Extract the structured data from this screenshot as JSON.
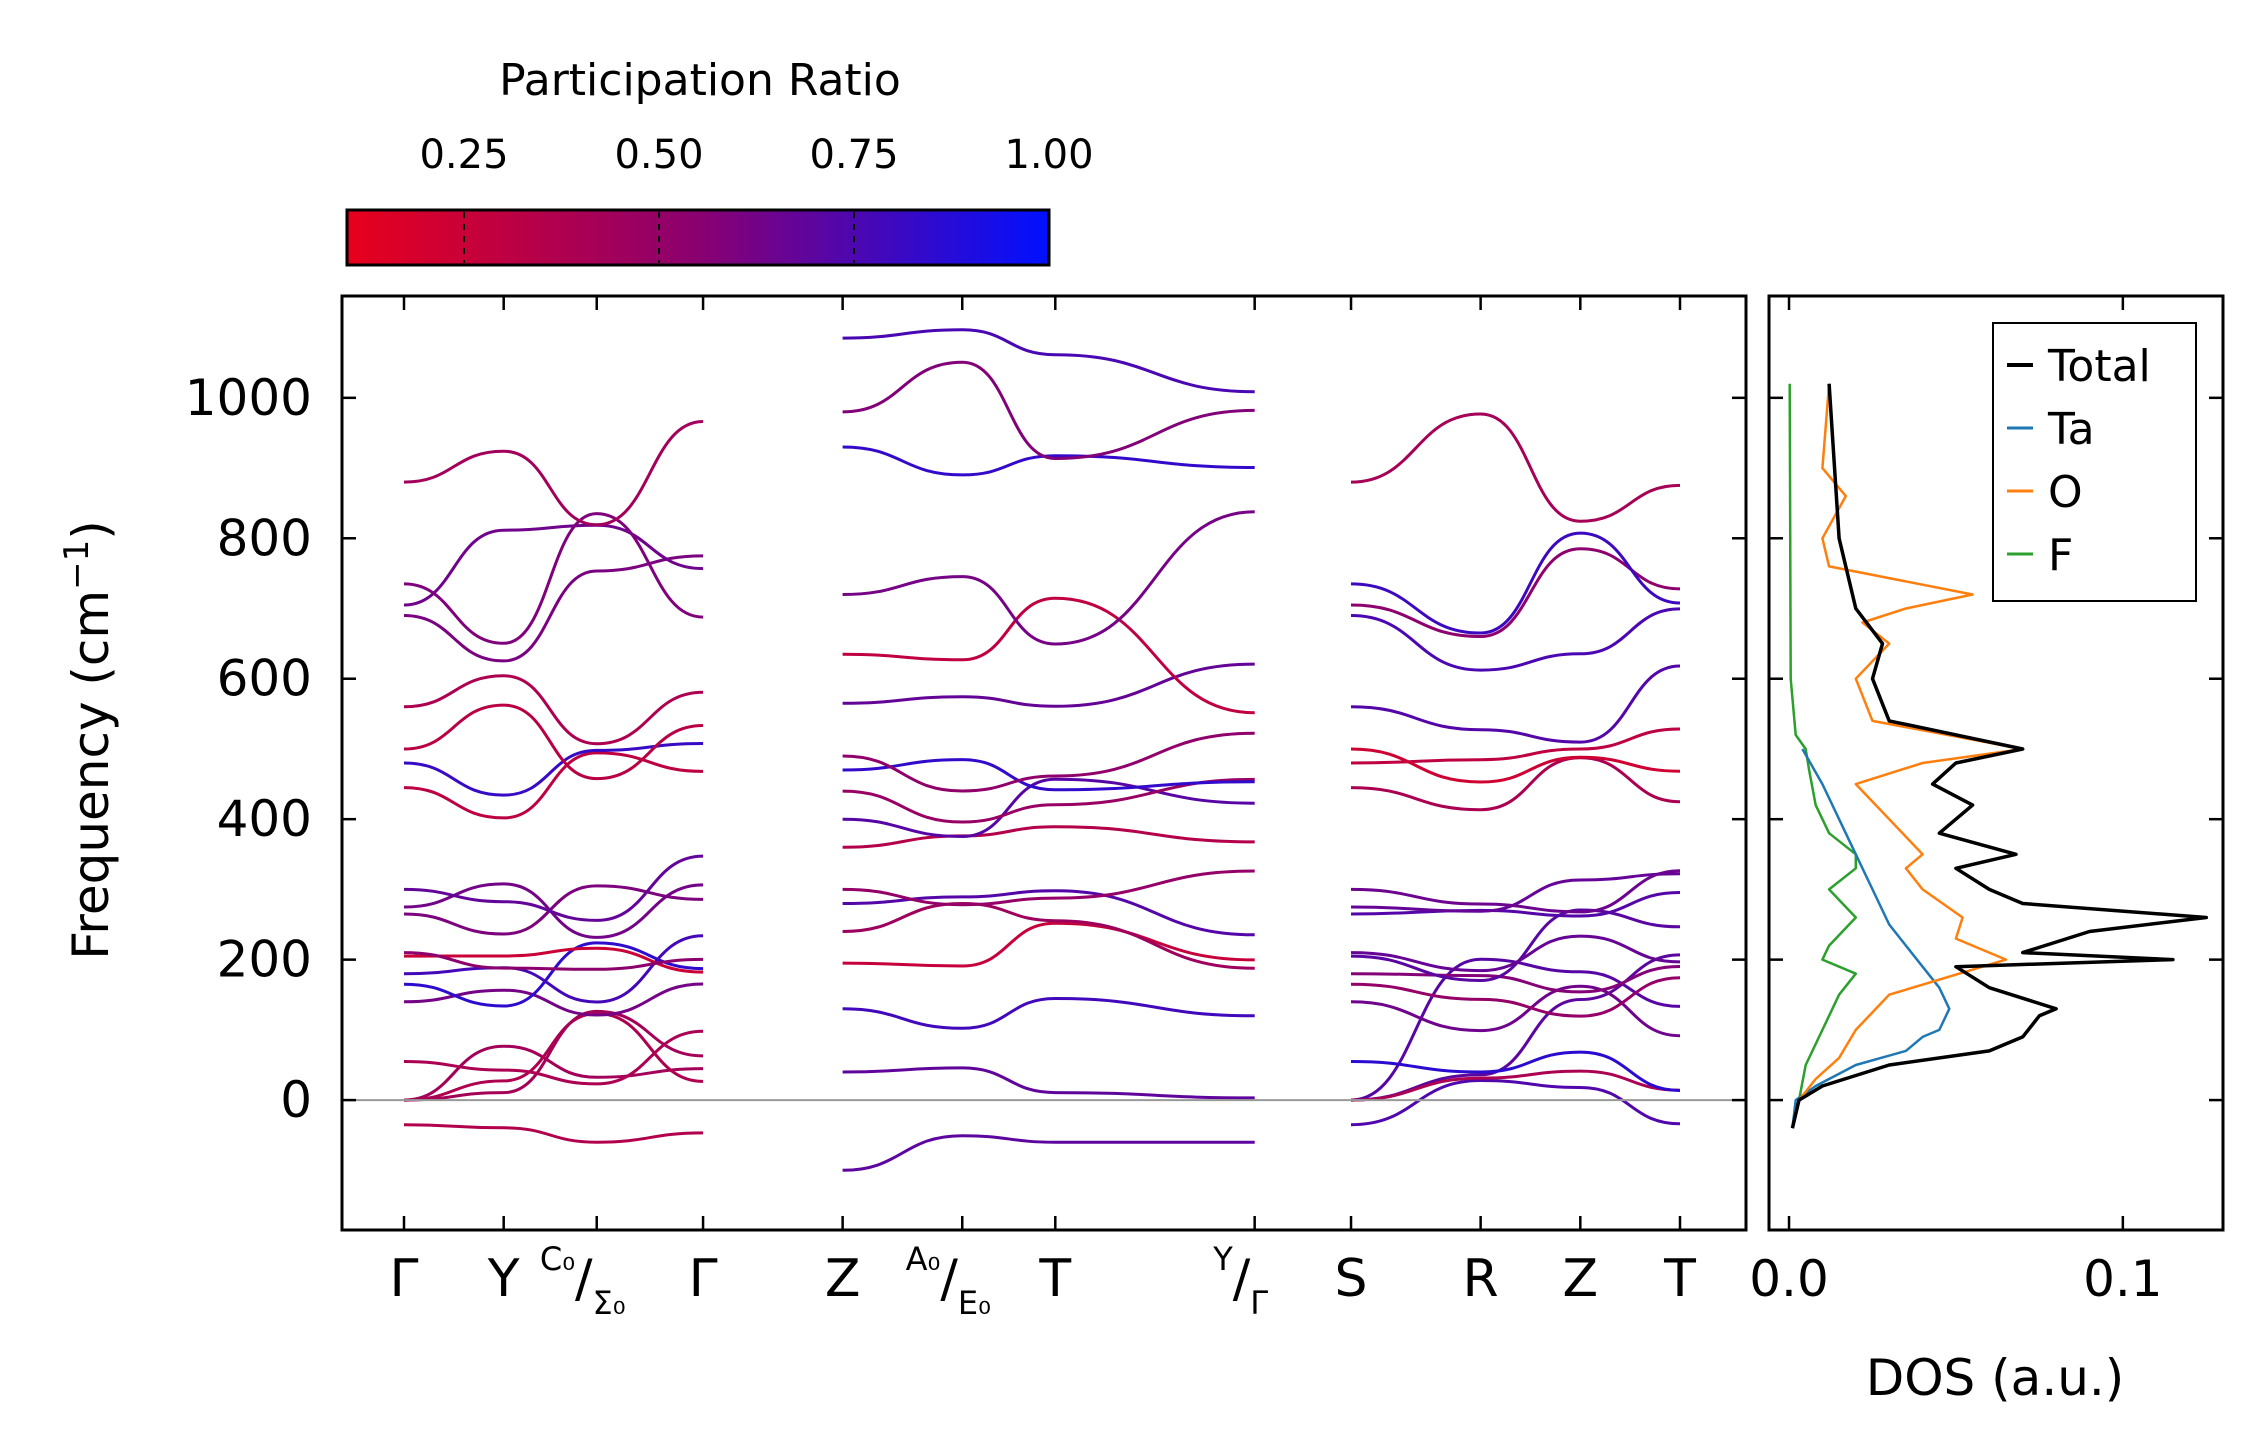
{
  "chart_data": [
    {
      "type": "line",
      "panel": "phonon band structure",
      "ylabel": "Frequency (cm",
      "ylabel_sup": "−1",
      "ylabel_close": ")",
      "ylim": [
        -185,
        1145
      ],
      "yticks": [
        0,
        200,
        400,
        600,
        800,
        1000
      ],
      "segments": [
        {
          "x_range": [
            0,
            4.5
          ],
          "ticks": [
            {
              "x": 0,
              "label": "Γ"
            },
            {
              "x": 1.5,
              "label": "Y"
            },
            {
              "x": 2.9,
              "label_sup": "C₀",
              "label_sub": "Σ₀"
            },
            {
              "x": 4.5,
              "label": "Γ"
            }
          ]
        },
        {
          "x_range": [
            6.6,
            12.8
          ],
          "ticks": [
            {
              "x": 6.6,
              "label": "Z"
            },
            {
              "x": 8.4,
              "label_sup": "A₀",
              "label_sub": "E₀"
            },
            {
              "x": 9.8,
              "label": "T"
            },
            {
              "x": 12.8,
              "label_sup": "Y",
              "label_sub": "Γ"
            }
          ]
        },
        {
          "x_range": [
            12.8,
            19.2
          ],
          "ticks": [
            {
              "x": 14.25,
              "label": "S"
            },
            {
              "x": 16.2,
              "label": "R"
            },
            {
              "x": 17.7,
              "label": "Z"
            },
            {
              "x": 19.2,
              "label": "T"
            }
          ]
        }
      ],
      "band_approx_frequencies_at_gamma": [
        -35,
        0,
        0,
        0,
        55,
        140,
        165,
        180,
        205,
        210,
        265,
        275,
        300,
        445,
        480,
        500,
        560,
        690,
        705,
        735,
        880
      ],
      "band_approx_frequencies_at_Z": [
        -100,
        40,
        130,
        195,
        240,
        280,
        300,
        360,
        400,
        440,
        470,
        490,
        565,
        635,
        720,
        930,
        980,
        1085
      ],
      "colorbar": {
        "title": "Participation Ratio",
        "ticks": [
          0.25,
          0.5,
          0.75,
          1.0
        ],
        "tick_labels": [
          "0.25",
          "0.50",
          "0.75",
          "1.00"
        ],
        "range": [
          0.1,
          1.0
        ],
        "color_low": "#e8001c",
        "color_mid": "#8a0070",
        "color_high": "#0010ff"
      }
    },
    {
      "type": "line",
      "panel": "density of states",
      "xlabel": "DOS (a.u.)",
      "xlim": [
        -0.006,
        0.13
      ],
      "xticks": [
        0.0,
        0.1
      ],
      "xtick_labels": [
        "0.0",
        "0.1"
      ],
      "legend": [
        "Total",
        "Ta",
        "O",
        "F"
      ],
      "legend_placement": "top-right",
      "series": [
        {
          "name": "Total",
          "color": "#000000",
          "y": [
            -40,
            0,
            20,
            50,
            70,
            90,
            120,
            130,
            160,
            190,
            200,
            210,
            240,
            260,
            280,
            300,
            330,
            350,
            380,
            420,
            450,
            480,
            500,
            540,
            600,
            650,
            700,
            800,
            1020
          ],
          "dos": [
            0.001,
            0.003,
            0.01,
            0.03,
            0.06,
            0.07,
            0.075,
            0.08,
            0.06,
            0.05,
            0.115,
            0.07,
            0.09,
            0.125,
            0.07,
            0.06,
            0.05,
            0.068,
            0.045,
            0.055,
            0.043,
            0.05,
            0.07,
            0.03,
            0.025,
            0.028,
            0.02,
            0.015,
            0.012
          ]
        },
        {
          "name": "Ta",
          "color": "#1f77b4",
          "y": [
            -40,
            0,
            20,
            50,
            70,
            90,
            100,
            130,
            160,
            190,
            220,
            250,
            300,
            350,
            400,
            450,
            500
          ],
          "dos": [
            0.001,
            0.002,
            0.008,
            0.02,
            0.035,
            0.04,
            0.045,
            0.048,
            0.045,
            0.04,
            0.035,
            0.03,
            0.025,
            0.02,
            0.015,
            0.01,
            0.004
          ]
        },
        {
          "name": "O",
          "color": "#ff7f0e",
          "y": [
            -40,
            0,
            30,
            60,
            100,
            150,
            200,
            230,
            260,
            300,
            330,
            350,
            400,
            450,
            480,
            500,
            540,
            600,
            650,
            680,
            700,
            720,
            760,
            800,
            860,
            900,
            1020
          ],
          "dos": [
            0.001,
            0.003,
            0.008,
            0.015,
            0.02,
            0.03,
            0.065,
            0.05,
            0.052,
            0.04,
            0.035,
            0.04,
            0.03,
            0.02,
            0.04,
            0.07,
            0.025,
            0.02,
            0.03,
            0.022,
            0.035,
            0.055,
            0.012,
            0.01,
            0.017,
            0.01,
            0.012
          ]
        },
        {
          "name": "F",
          "color": "#2ca02c",
          "y": [
            -40,
            0,
            50,
            100,
            150,
            180,
            200,
            220,
            260,
            300,
            330,
            350,
            380,
            420,
            470,
            500,
            520,
            600,
            1020
          ],
          "dos": [
            0.001,
            0.003,
            0.005,
            0.01,
            0.015,
            0.02,
            0.01,
            0.012,
            0.02,
            0.012,
            0.02,
            0.02,
            0.012,
            0.008,
            0.006,
            0.005,
            0.002,
            0.0005,
            0.0002
          ]
        }
      ]
    }
  ]
}
